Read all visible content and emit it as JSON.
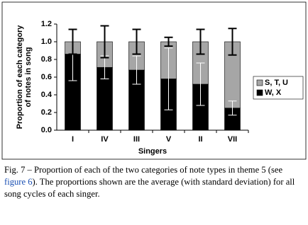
{
  "chart_data": {
    "type": "stacked-bar",
    "x_label": "Singers",
    "y_label": [
      "Proportion of each category",
      "of notes in song"
    ],
    "categories": [
      "I",
      "IV",
      "III",
      "V",
      "II",
      "VII"
    ],
    "series": [
      {
        "name": "W, X",
        "color": "#000000",
        "error_color": "#ffffff",
        "values": [
          0.86,
          0.71,
          0.68,
          0.58,
          0.52,
          0.25
        ],
        "errors": [
          0.3,
          0.13,
          0.16,
          0.35,
          0.24,
          0.08
        ]
      },
      {
        "name": "S, T, U",
        "color": "#a6a6a6",
        "error_color": "#000000",
        "values": [
          0.14,
          0.29,
          0.32,
          0.42,
          0.48,
          0.75
        ],
        "errors": [
          0.14,
          0.18,
          0.14,
          0.05,
          0.14,
          0.15
        ]
      }
    ],
    "ylim": [
      0,
      1.2
    ],
    "yticks": [
      {
        "value": 0,
        "label": "0.0"
      },
      0.2,
      0.4,
      0.6,
      0.8,
      {
        "value": 1,
        "label": "1.0"
      },
      1.2
    ],
    "legend": "right"
  },
  "caption": {
    "before": "Fig. 7 – Proportion of each of the two categories of note types in theme 5 (see ",
    "link": "figure 6",
    "after": "). The proportions shown are the average (with standard deviation) for all song cycles of each singer."
  }
}
